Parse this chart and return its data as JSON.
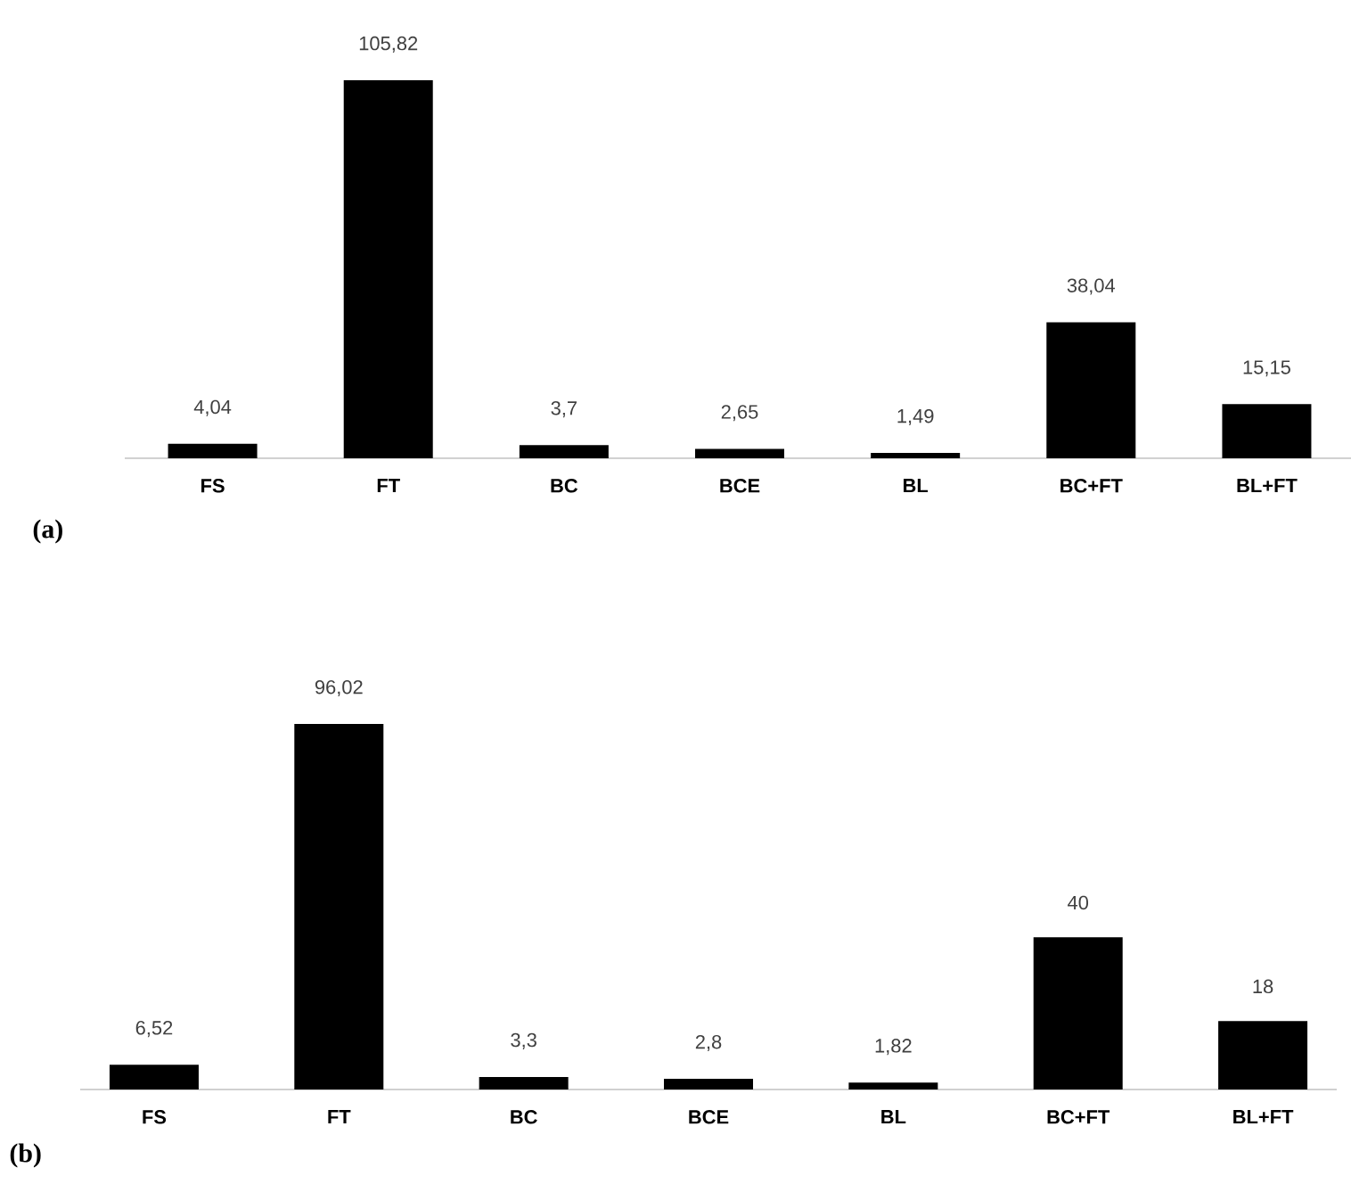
{
  "chart_data": [
    {
      "type": "bar",
      "categories": [
        "FS",
        "FT",
        "BC",
        "BCE",
        "BL",
        "BC+FT",
        "BL+FT"
      ],
      "values": [
        4.04,
        105.82,
        3.7,
        2.65,
        1.49,
        38.04,
        15.15
      ],
      "value_labels": [
        "4,04",
        "105,82",
        "3,7",
        "2,65",
        "1,49",
        "38,04",
        "15,15"
      ],
      "color": "#000000",
      "annotations": [
        "(a)"
      ]
    },
    {
      "type": "bar",
      "categories": [
        "FS",
        "FT",
        "BC",
        "BCE",
        "BL",
        "BC+FT",
        "BL+FT"
      ],
      "values": [
        6.52,
        96.02,
        3.3,
        2.8,
        1.82,
        40,
        18
      ],
      "value_labels": [
        "6,52",
        "96,02",
        "3,3",
        "2,8",
        "1,82",
        "40",
        "18"
      ],
      "color": "#000000",
      "annotations": [
        "(b)"
      ]
    }
  ]
}
